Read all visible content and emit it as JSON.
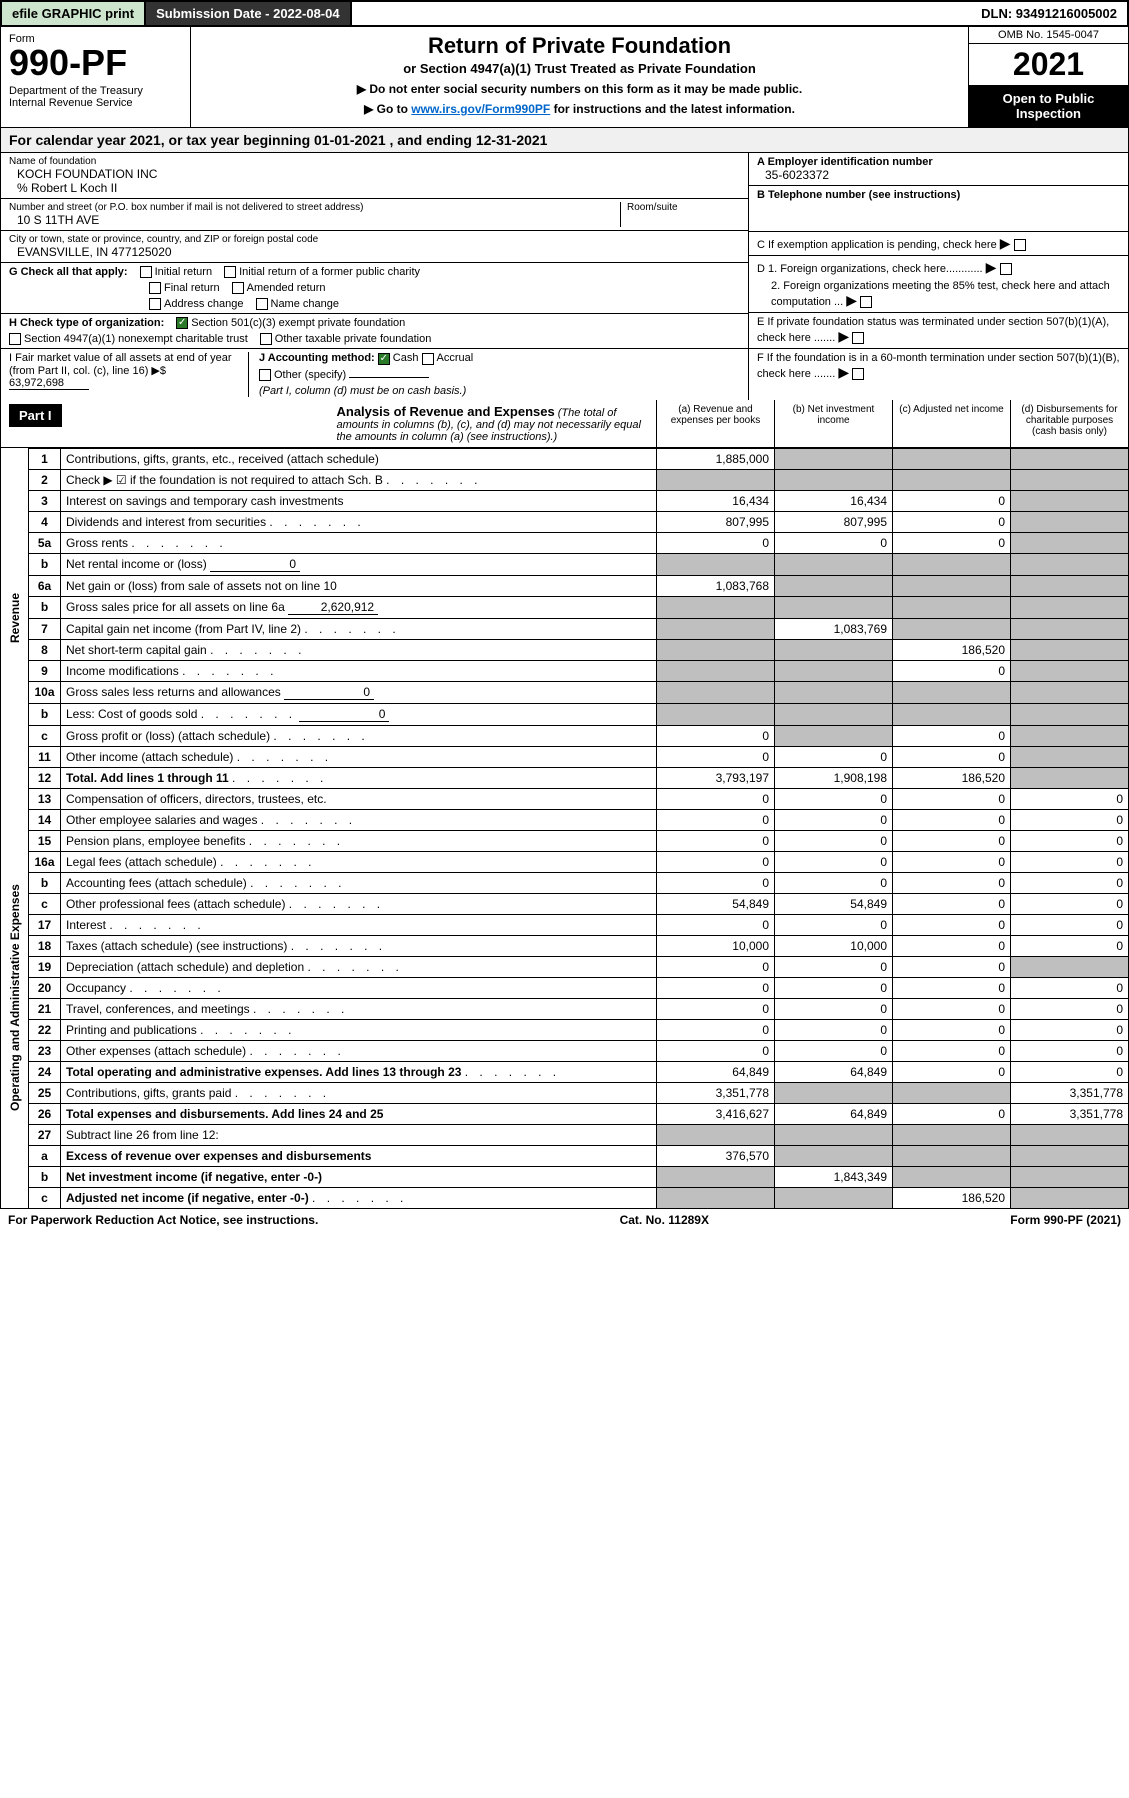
{
  "topbar": {
    "efile": "efile GRAPHIC print",
    "submission": "Submission Date - 2022-08-04",
    "dln": "DLN: 93491216005002"
  },
  "header": {
    "form_word": "Form",
    "form_num": "990-PF",
    "dept": "Department of the Treasury\nInternal Revenue Service",
    "title": "Return of Private Foundation",
    "subtitle": "or Section 4947(a)(1) Trust Treated as Private Foundation",
    "note1": "▶ Do not enter social security numbers on this form as it may be made public.",
    "note2_pre": "▶ Go to ",
    "note2_link": "www.irs.gov/Form990PF",
    "note2_post": " for instructions and the latest information.",
    "omb": "OMB No. 1545-0047",
    "year": "2021",
    "open": "Open to Public Inspection"
  },
  "calendar": "For calendar year 2021, or tax year beginning 01-01-2021                  , and ending 12-31-2021",
  "foundation": {
    "name_label": "Name of foundation",
    "name": "KOCH FOUNDATION INC",
    "care_of": "% Robert L Koch II",
    "addr_label": "Number and street (or P.O. box number if mail is not delivered to street address)",
    "addr": "10 S 11TH AVE",
    "room_label": "Room/suite",
    "city_label": "City or town, state or province, country, and ZIP or foreign postal code",
    "city": "EVANSVILLE, IN  477125020",
    "ein_label": "A Employer identification number",
    "ein": "35-6023372",
    "phone_label": "B Telephone number (see instructions)",
    "pending": "C If exemption application is pending, check here",
    "d1": "D 1. Foreign organizations, check here............",
    "d2": "2. Foreign organizations meeting the 85% test, check here and attach computation ...",
    "e": "E  If private foundation status was terminated under section 507(b)(1)(A), check here .......",
    "f": "F  If the foundation is in a 60-month termination under section 507(b)(1)(B), check here .......",
    "g_label": "G Check all that apply:",
    "g_opts": [
      "Initial return",
      "Initial return of a former public charity",
      "Final return",
      "Amended return",
      "Address change",
      "Name change"
    ],
    "h_label": "H Check type of organization:",
    "h1": "Section 501(c)(3) exempt private foundation",
    "h2": "Section 4947(a)(1) nonexempt charitable trust",
    "h3": "Other taxable private foundation",
    "i_label": "I Fair market value of all assets at end of year (from Part II, col. (c), line 16) ▶$ ",
    "i_val": "63,972,698",
    "j_label": "J Accounting method:",
    "j_cash": "Cash",
    "j_accrual": "Accrual",
    "j_other": "Other (specify)",
    "j_note": "(Part I, column (d) must be on cash basis.)"
  },
  "part1": {
    "label": "Part I",
    "title": "Analysis of Revenue and Expenses",
    "note": "(The total of amounts in columns (b), (c), and (d) may not necessarily equal the amounts in column (a) (see instructions).)",
    "cols": {
      "a": "(a)   Revenue and expenses per books",
      "b": "(b)   Net investment income",
      "c": "(c)   Adjusted net income",
      "d": "(d)   Disbursements for charitable purposes (cash basis only)"
    }
  },
  "sections": {
    "revenue": "Revenue",
    "expenses": "Operating and Administrative Expenses"
  },
  "rows": [
    {
      "n": "1",
      "d": "Contributions, gifts, grants, etc., received (attach schedule)",
      "a": "1,885,000",
      "grey": [
        "b",
        "c",
        "d"
      ]
    },
    {
      "n": "2",
      "d": "Check ▶ ☑ if the foundation is not required to attach Sch. B",
      "dots": true,
      "grey": [
        "a",
        "b",
        "c",
        "d"
      ]
    },
    {
      "n": "3",
      "d": "Interest on savings and temporary cash investments",
      "a": "16,434",
      "b": "16,434",
      "c": "0",
      "grey": [
        "d"
      ]
    },
    {
      "n": "4",
      "d": "Dividends and interest from securities",
      "dots": true,
      "a": "807,995",
      "b": "807,995",
      "c": "0",
      "grey": [
        "d"
      ]
    },
    {
      "n": "5a",
      "d": "Gross rents",
      "dots": true,
      "a": "0",
      "b": "0",
      "c": "0",
      "grey": [
        "d"
      ]
    },
    {
      "n": "b",
      "d": "Net rental income or (loss)",
      "inline": "0",
      "grey": [
        "a",
        "b",
        "c",
        "d"
      ]
    },
    {
      "n": "6a",
      "d": "Net gain or (loss) from sale of assets not on line 10",
      "a": "1,083,768",
      "grey": [
        "b",
        "c",
        "d"
      ]
    },
    {
      "n": "b",
      "d": "Gross sales price for all assets on line 6a",
      "inline": "2,620,912",
      "grey": [
        "a",
        "b",
        "c",
        "d"
      ]
    },
    {
      "n": "7",
      "d": "Capital gain net income (from Part IV, line 2)",
      "dots": true,
      "b": "1,083,769",
      "grey": [
        "a",
        "c",
        "d"
      ]
    },
    {
      "n": "8",
      "d": "Net short-term capital gain",
      "dots": true,
      "c": "186,520",
      "grey": [
        "a",
        "b",
        "d"
      ]
    },
    {
      "n": "9",
      "d": "Income modifications",
      "dots": true,
      "c": "0",
      "grey": [
        "a",
        "b",
        "d"
      ]
    },
    {
      "n": "10a",
      "d": "Gross sales less returns and allowances",
      "inline": "0",
      "grey": [
        "a",
        "b",
        "c",
        "d"
      ]
    },
    {
      "n": "b",
      "d": "Less: Cost of goods sold",
      "dots": true,
      "inline": "0",
      "grey": [
        "a",
        "b",
        "c",
        "d"
      ]
    },
    {
      "n": "c",
      "d": "Gross profit or (loss) (attach schedule)",
      "dots": true,
      "a": "0",
      "c": "0",
      "grey": [
        "b",
        "d"
      ]
    },
    {
      "n": "11",
      "d": "Other income (attach schedule)",
      "dots": true,
      "a": "0",
      "b": "0",
      "c": "0",
      "grey": [
        "d"
      ]
    },
    {
      "n": "12",
      "d": "Total. Add lines 1 through 11",
      "dots": true,
      "bold": true,
      "a": "3,793,197",
      "b": "1,908,198",
      "c": "186,520",
      "grey": [
        "d"
      ]
    },
    {
      "n": "13",
      "d": "Compensation of officers, directors, trustees, etc.",
      "a": "0",
      "b": "0",
      "c": "0",
      "dd": "0",
      "section": "exp"
    },
    {
      "n": "14",
      "d": "Other employee salaries and wages",
      "dots": true,
      "a": "0",
      "b": "0",
      "c": "0",
      "dd": "0"
    },
    {
      "n": "15",
      "d": "Pension plans, employee benefits",
      "dots": true,
      "a": "0",
      "b": "0",
      "c": "0",
      "dd": "0"
    },
    {
      "n": "16a",
      "d": "Legal fees (attach schedule)",
      "dots": true,
      "a": "0",
      "b": "0",
      "c": "0",
      "dd": "0"
    },
    {
      "n": "b",
      "d": "Accounting fees (attach schedule)",
      "dots": true,
      "a": "0",
      "b": "0",
      "c": "0",
      "dd": "0"
    },
    {
      "n": "c",
      "d": "Other professional fees (attach schedule)",
      "dots": true,
      "a": "54,849",
      "b": "54,849",
      "c": "0",
      "dd": "0"
    },
    {
      "n": "17",
      "d": "Interest",
      "dots": true,
      "a": "0",
      "b": "0",
      "c": "0",
      "dd": "0"
    },
    {
      "n": "18",
      "d": "Taxes (attach schedule) (see instructions)",
      "dots": true,
      "a": "10,000",
      "b": "10,000",
      "c": "0",
      "dd": "0"
    },
    {
      "n": "19",
      "d": "Depreciation (attach schedule) and depletion",
      "dots": true,
      "a": "0",
      "b": "0",
      "c": "0",
      "grey": [
        "d"
      ]
    },
    {
      "n": "20",
      "d": "Occupancy",
      "dots": true,
      "a": "0",
      "b": "0",
      "c": "0",
      "dd": "0"
    },
    {
      "n": "21",
      "d": "Travel, conferences, and meetings",
      "dots": true,
      "a": "0",
      "b": "0",
      "c": "0",
      "dd": "0"
    },
    {
      "n": "22",
      "d": "Printing and publications",
      "dots": true,
      "a": "0",
      "b": "0",
      "c": "0",
      "dd": "0"
    },
    {
      "n": "23",
      "d": "Other expenses (attach schedule)",
      "dots": true,
      "a": "0",
      "b": "0",
      "c": "0",
      "dd": "0"
    },
    {
      "n": "24",
      "d": "Total operating and administrative expenses. Add lines 13 through 23",
      "dots": true,
      "bold": true,
      "a": "64,849",
      "b": "64,849",
      "c": "0",
      "dd": "0"
    },
    {
      "n": "25",
      "d": "Contributions, gifts, grants paid",
      "dots": true,
      "a": "3,351,778",
      "dd": "3,351,778",
      "grey": [
        "b",
        "c"
      ]
    },
    {
      "n": "26",
      "d": "Total expenses and disbursements. Add lines 24 and 25",
      "bold": true,
      "a": "3,416,627",
      "b": "64,849",
      "c": "0",
      "dd": "3,351,778"
    },
    {
      "n": "27",
      "d": "Subtract line 26 from line 12:",
      "grey": [
        "a",
        "b",
        "c",
        "d"
      ],
      "noamt": true
    },
    {
      "n": "a",
      "d": "Excess of revenue over expenses and disbursements",
      "bold": true,
      "a": "376,570",
      "grey": [
        "b",
        "c",
        "d"
      ]
    },
    {
      "n": "b",
      "d": "Net investment income (if negative, enter -0-)",
      "bold": true,
      "b": "1,843,349",
      "grey": [
        "a",
        "c",
        "d"
      ]
    },
    {
      "n": "c",
      "d": "Adjusted net income (if negative, enter -0-)",
      "dots": true,
      "bold": true,
      "c": "186,520",
      "grey": [
        "a",
        "b",
        "d"
      ]
    }
  ],
  "footer": {
    "left": "For Paperwork Reduction Act Notice, see instructions.",
    "center": "Cat. No. 11289X",
    "right": "Form 990-PF (2021)"
  }
}
